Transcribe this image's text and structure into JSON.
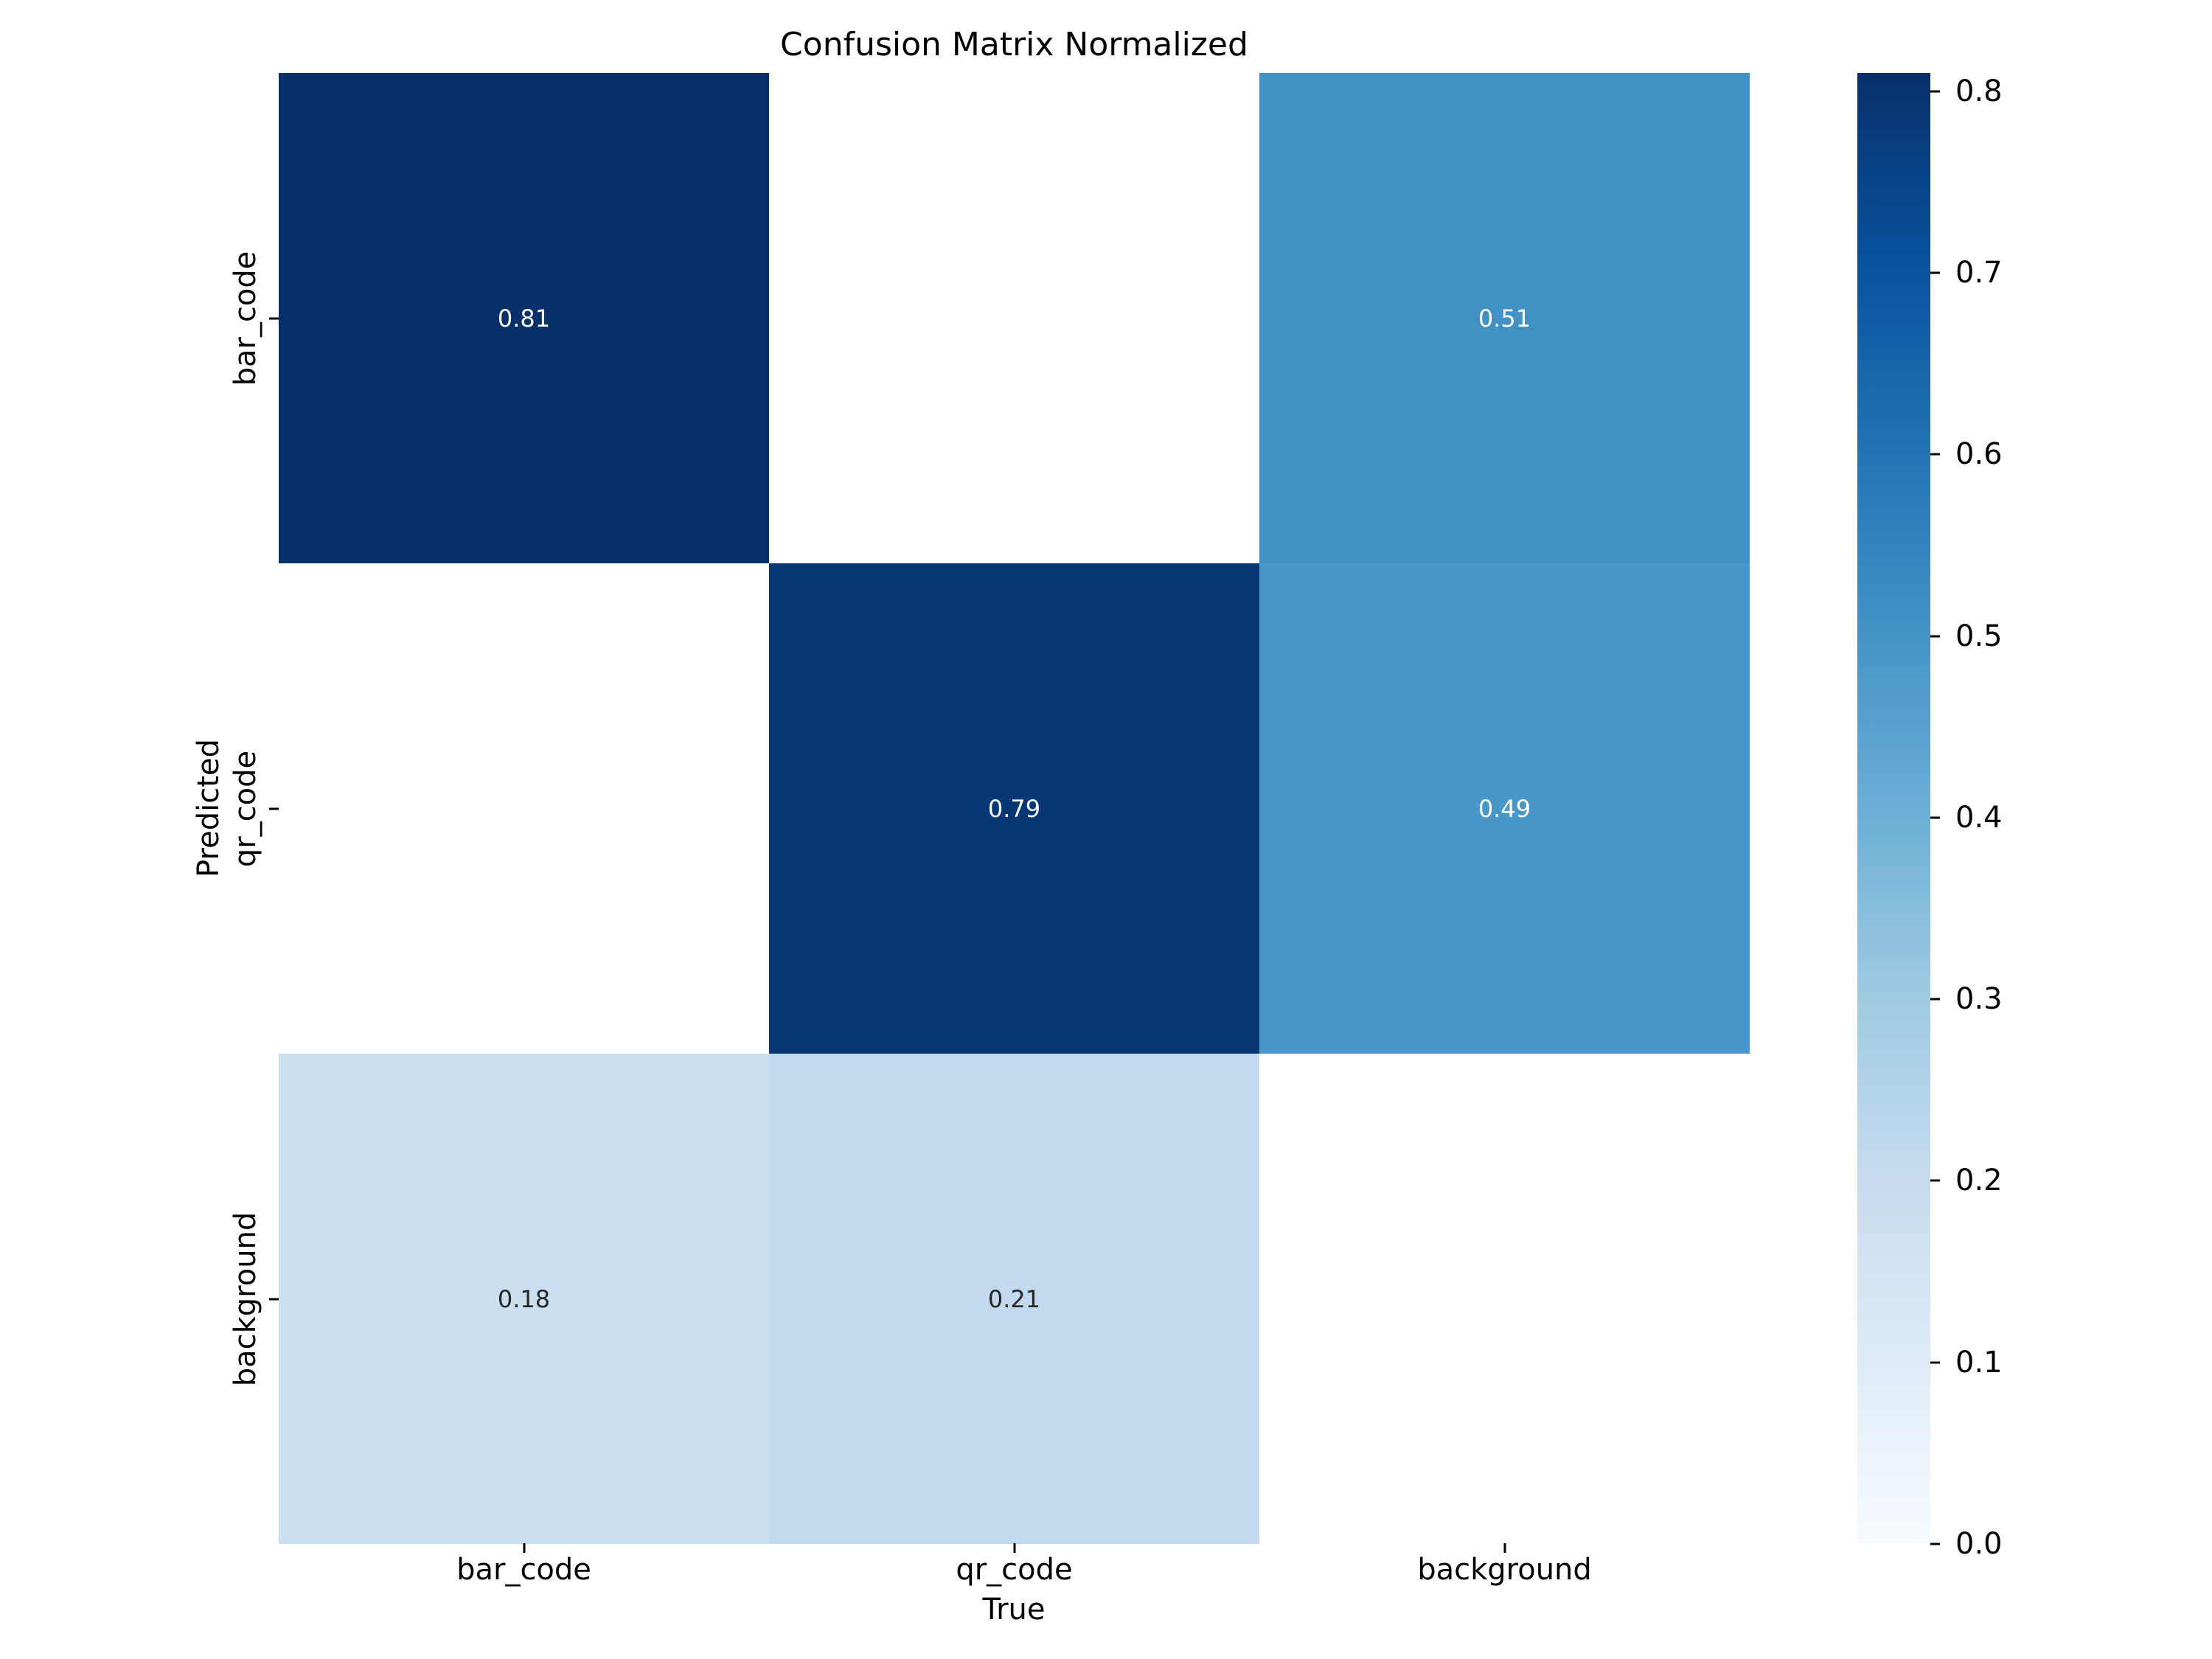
{
  "figure": {
    "background": "#ffffff"
  },
  "chart_data": {
    "type": "heatmap",
    "title": "Confusion Matrix Normalized",
    "xlabel": "True",
    "ylabel": "Predicted",
    "x_categories": [
      "bar_code",
      "qr_code",
      "background"
    ],
    "y_categories": [
      "bar_code",
      "qr_code",
      "background"
    ],
    "matrix": [
      [
        0.81,
        null,
        0.51
      ],
      [
        null,
        0.79,
        0.49
      ],
      [
        0.18,
        0.21,
        null
      ]
    ],
    "cell_labels": [
      [
        "0.81",
        "",
        "0.51"
      ],
      [
        "",
        "0.79",
        "0.49"
      ],
      [
        "0.18",
        "0.21",
        ""
      ]
    ],
    "cell_colors": [
      [
        "#08306b",
        "#ffffff",
        "#4191c5"
      ],
      [
        "#ffffff",
        "#083775",
        "#4997c9"
      ],
      [
        "#cbdff1",
        "#c3daee",
        "#ffffff"
      ]
    ],
    "cell_text_colors": [
      [
        "#ffffff",
        "",
        "#ffffff"
      ],
      [
        "",
        "#ffffff",
        "#ffffff"
      ],
      [
        "#262626",
        "#262626",
        ""
      ]
    ],
    "colormap": "Blues",
    "vmin": 0.0,
    "vmax": 0.81,
    "grid": false,
    "legend_position": "right-colorbar",
    "colorbar": {
      "ticks": [
        "0.8",
        "0.7",
        "0.6",
        "0.5",
        "0.4",
        "0.3",
        "0.2",
        "0.1",
        "0.0"
      ],
      "gradient_top_to_bottom": [
        "#08306b",
        "#08519c",
        "#2171b5",
        "#4292c6",
        "#6baed6",
        "#9ecae1",
        "#c6dbef",
        "#deebf7",
        "#f7fbff"
      ]
    }
  }
}
